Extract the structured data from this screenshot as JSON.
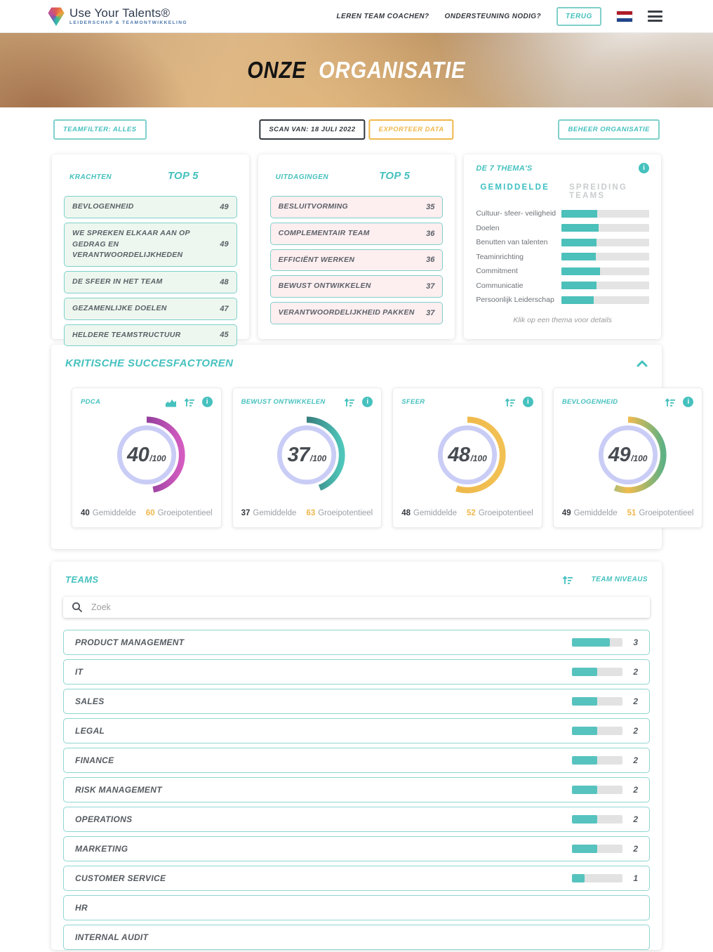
{
  "colors": {
    "accent_teal": "#45c1be",
    "accent_orange": "#f0b74a",
    "dark": "#33383f",
    "bar_fill": "#57c3bf",
    "item_green_bg": "#edf7ef",
    "item_pink_bg": "#fdeef0",
    "lavender_ring": "#c9cdf6"
  },
  "icons": {
    "info_glyph": "i"
  },
  "nav": {
    "logo_title": "Use Your Talents®",
    "logo_subtitle": "LEIDERSCHAP & TEAMONTWIKKELING",
    "links": [
      "LEREN TEAM COACHEN?",
      "ONDERSTEUNING NODIG?"
    ],
    "back_button": "TERUG"
  },
  "hero": {
    "title_part1": "ONZE",
    "title_part2": "ORGANISATIE"
  },
  "filters": {
    "teamfilter": "TEAMFILTER: ALLES",
    "scan": "SCAN VAN: 18 JULI 2022",
    "export": "EXPORTEER DATA",
    "manage": "BEHEER ORGANISATIE"
  },
  "krachten": {
    "label": "KRACHTEN",
    "top_title": "TOP 5",
    "items": [
      {
        "name": "BEVLOGENHEID",
        "value": 49
      },
      {
        "name": "WE SPREKEN ELKAAR AAN OP GEDRAG EN VERANTWOORDELIJKHEDEN",
        "value": 49
      },
      {
        "name": "DE SFEER IN HET TEAM",
        "value": 48
      },
      {
        "name": "GEZAMENLIJKE DOELEN",
        "value": 47
      },
      {
        "name": "HELDERE TEAMSTRUCTUUR",
        "value": 45
      }
    ]
  },
  "uitdagingen": {
    "label": "UITDAGINGEN",
    "top_title": "TOP 5",
    "items": [
      {
        "name": "BESLUITVORMING",
        "value": 35
      },
      {
        "name": "COMPLEMENTAIR TEAM",
        "value": 36
      },
      {
        "name": "EFFICIËNT WERKEN",
        "value": 36
      },
      {
        "name": "BEWUST ONTWIKKELEN",
        "value": 37
      },
      {
        "name": "VERANTWOORDELIJKHEID PAKKEN",
        "value": 37
      }
    ]
  },
  "themas": {
    "title": "DE 7 THEMA'S",
    "tab_active": "GEMIDDELDE",
    "tab_inactive": "SPREIDING TEAMS",
    "note": "Klik op een thema voor details",
    "bars": [
      {
        "label": "Cultuur- sfeer- veiligheid",
        "pct": 41
      },
      {
        "label": "Doelen",
        "pct": 42
      },
      {
        "label": "Benutten van talenten",
        "pct": 40
      },
      {
        "label": "Teaminrichting",
        "pct": 39
      },
      {
        "label": "Commitment",
        "pct": 44
      },
      {
        "label": "Communicatie",
        "pct": 40
      },
      {
        "label": "Persoonlijk Leiderschap",
        "pct": 37
      }
    ]
  },
  "succesfactoren": {
    "title": "KRITISCHE SUCCESFACTOREN",
    "gemiddelde_label": "Gemiddelde",
    "groeipotentieel_label": "Groeipotentieel",
    "cards": [
      {
        "title": "PDCA",
        "score": 40,
        "denominator": "/100",
        "gemiddelde": 40,
        "groeipotentieel": 60,
        "chart_icon": true,
        "arc_colors": [
          "#53217b",
          "#d45cc0"
        ]
      },
      {
        "title": "BEWUST ONTWIKKELEN",
        "score": 37,
        "denominator": "/100",
        "gemiddelde": 37,
        "groeipotentieel": 63,
        "chart_icon": null,
        "arc_colors": [
          "#1f3440",
          "#4fc6ba"
        ]
      },
      {
        "title": "SFEER",
        "score": 48,
        "denominator": "/100",
        "gemiddelde": 48,
        "groeipotentieel": 52,
        "chart_icon": null,
        "arc_colors": [
          "#ecb347",
          "#f2c153"
        ]
      },
      {
        "title": "BEVLOGENHEID",
        "score": 49,
        "denominator": "/100",
        "gemiddelde": 49,
        "groeipotentieel": 51,
        "chart_icon": null,
        "arc_colors": [
          "#4fc2ae",
          "#f0bb4e",
          "#5fb183"
        ]
      }
    ]
  },
  "teams": {
    "title": "TEAMS",
    "niveaus_label": "TEAM NIVEAUS",
    "search_placeholder": "Zoek",
    "rows": [
      {
        "name": "PRODUCT MANAGEMENT",
        "count": 3,
        "bar_pct": 75
      },
      {
        "name": "IT",
        "count": 2,
        "bar_pct": 50
      },
      {
        "name": "SALES",
        "count": 2,
        "bar_pct": 50
      },
      {
        "name": "LEGAL",
        "count": 2,
        "bar_pct": 50
      },
      {
        "name": "FINANCE",
        "count": 2,
        "bar_pct": 50
      },
      {
        "name": "RISK MANAGEMENT",
        "count": 2,
        "bar_pct": 50
      },
      {
        "name": "OPERATIONS",
        "count": 2,
        "bar_pct": 50
      },
      {
        "name": "MARKETING",
        "count": 2,
        "bar_pct": 50
      },
      {
        "name": "CUSTOMER SERVICE",
        "count": 1,
        "bar_pct": 25
      },
      {
        "name": "HR",
        "count": null,
        "bar_pct": null
      },
      {
        "name": "INTERNAL AUDIT",
        "count": null,
        "bar_pct": null
      }
    ]
  }
}
